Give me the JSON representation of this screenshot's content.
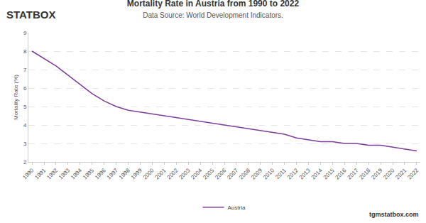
{
  "chart_data": {
    "type": "line",
    "title": "Mortality Rate in Austria from 1990 to 2022",
    "subtitle": "Data Source: World Development Indicators.",
    "y_label": "Mortality Rate (%)",
    "categories": [
      "1990",
      "1991",
      "1992",
      "1993",
      "1994",
      "1995",
      "1996",
      "1997",
      "1998",
      "1999",
      "2000",
      "2001",
      "2002",
      "2003",
      "2004",
      "2005",
      "2006",
      "2007",
      "2008",
      "2009",
      "2010",
      "2011",
      "2012",
      "2013",
      "2014",
      "2015",
      "2016",
      "2017",
      "2018",
      "2019",
      "2020",
      "2021",
      "2022"
    ],
    "series": [
      {
        "name": "Austria",
        "color": "#7d3c98",
        "values": [
          8.0,
          7.6,
          7.2,
          6.7,
          6.2,
          5.7,
          5.3,
          5.0,
          4.8,
          4.7,
          4.6,
          4.5,
          4.4,
          4.3,
          4.2,
          4.1,
          4.0,
          3.9,
          3.8,
          3.7,
          3.6,
          3.5,
          3.3,
          3.2,
          3.1,
          3.1,
          3.0,
          3.0,
          2.9,
          2.9,
          2.8,
          2.7,
          2.6
        ]
      }
    ],
    "ylim": [
      2,
      9
    ],
    "yticks": [
      2,
      3,
      4,
      5,
      6,
      7,
      8,
      9
    ],
    "grid": true,
    "legend": "bottom",
    "annotations": [
      {
        "text": "STATBOX"
      },
      {
        "text": "tgmstatbox.com"
      }
    ]
  }
}
